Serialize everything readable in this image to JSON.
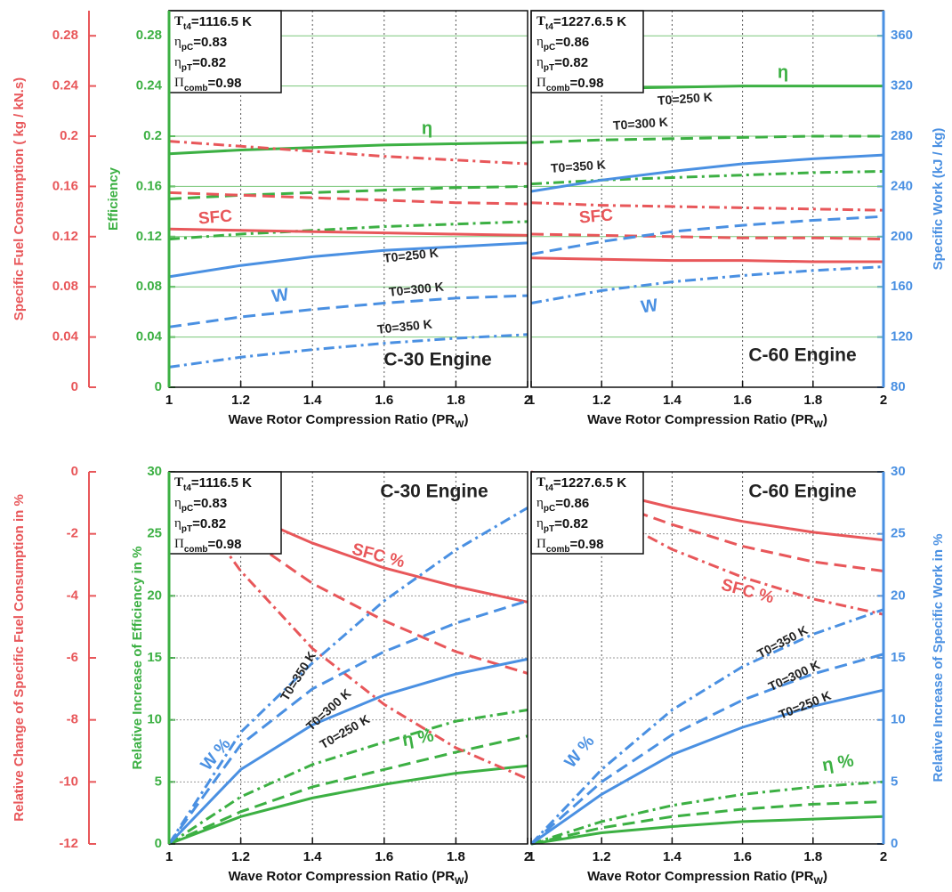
{
  "chart_data": [
    {
      "type": "line",
      "grid": true,
      "x": [
        1,
        1.2,
        1.4,
        1.6,
        1.8,
        2
      ],
      "xlim": [
        1,
        2
      ],
      "xticks": [
        1,
        1.2,
        1.4,
        1.6,
        1.8,
        2
      ],
      "ylabel": "Efficiency",
      "ylim": [
        0,
        0.3
      ],
      "yticks": [
        0,
        0.04,
        0.08,
        0.12,
        0.16,
        0.2,
        0.24,
        0.28
      ],
      "y2label": "Specific Fuel Consumption ( kg / kN.s)",
      "y2lim": [
        0,
        0.3
      ],
      "y2ticks": [
        0,
        0.04,
        0.08,
        0.12,
        0.16,
        0.2,
        0.24,
        0.28
      ],
      "y3label": "Specific Work (kJ / kg)",
      "y3lim": [
        80,
        380
      ],
      "y3ticks": [
        80,
        120,
        160,
        200,
        240,
        280,
        320,
        360
      ],
      "colors": {
        "y": "#3cb043",
        "y2": "#e8575a",
        "y3": "#4a90e2"
      },
      "panels": [
        {
          "title": "C-30 Engine",
          "xlabel": "Wave Rotor Compression Ratio (PR",
          "xlabel_sub": "W",
          "xlabel_end": ")",
          "conditions": [
            {
              "symbol": "T",
              "sub": "t4",
              "value": "=1116.5 K"
            },
            {
              "symbol": "η",
              "sub": "pC",
              "value": "=0.83"
            },
            {
              "symbol": "η",
              "sub": "pT",
              "value": "=0.82"
            },
            {
              "symbol": "Π",
              "sub": "comb",
              "value": "=0.98"
            }
          ],
          "labels": [
            "η",
            "SFC",
            "W",
            "T0=250 K",
            "T0=300 K",
            "T0=350 K"
          ],
          "series": [
            {
              "axis": "y",
              "color": "#3cb043",
              "dash": "solid",
              "values": [
                0.186,
                0.189,
                0.191,
                0.193,
                0.194,
                0.195
              ]
            },
            {
              "axis": "y",
              "color": "#3cb043",
              "dash": "dashed",
              "values": [
                0.15,
                0.153,
                0.155,
                0.157,
                0.159,
                0.16
              ]
            },
            {
              "axis": "y",
              "color": "#3cb043",
              "dash": "dashdot",
              "values": [
                0.118,
                0.122,
                0.125,
                0.128,
                0.13,
                0.132
              ]
            },
            {
              "axis": "y2",
              "color": "#e8575a",
              "dash": "solid",
              "values": [
                0.126,
                0.125,
                0.124,
                0.123,
                0.122,
                0.121
              ]
            },
            {
              "axis": "y2",
              "color": "#e8575a",
              "dash": "dashed",
              "values": [
                0.155,
                0.153,
                0.151,
                0.149,
                0.147,
                0.146
              ]
            },
            {
              "axis": "y2",
              "color": "#e8575a",
              "dash": "dashdot",
              "values": [
                0.196,
                0.192,
                0.188,
                0.184,
                0.181,
                0.178
              ]
            },
            {
              "axis": "y3",
              "color": "#4a90e2",
              "dash": "solid",
              "values": [
                168,
                177,
                184,
                189,
                192,
                195
              ]
            },
            {
              "axis": "y3",
              "color": "#4a90e2",
              "dash": "dashed",
              "values": [
                128,
                136,
                142,
                147,
                151,
                153
              ]
            },
            {
              "axis": "y3",
              "color": "#4a90e2",
              "dash": "dashdot",
              "values": [
                96,
                104,
                110,
                115,
                119,
                122
              ]
            }
          ]
        },
        {
          "title": "C-60 Engine",
          "xlabel": "Wave Rotor Compression Ratio (PR",
          "xlabel_sub": "W",
          "xlabel_end": ")",
          "conditions": [
            {
              "symbol": "T",
              "sub": "t4",
              "value": "=1227.6.5 K"
            },
            {
              "symbol": "η",
              "sub": "pC",
              "value": "=0.86"
            },
            {
              "symbol": "η",
              "sub": "pT",
              "value": "=0.82"
            },
            {
              "symbol": "Π",
              "sub": "comb",
              "value": "=0.98"
            }
          ],
          "labels": [
            "η",
            "SFC",
            "W",
            "T0=250 K",
            "T0=300 K",
            "T0=350 K"
          ],
          "series": [
            {
              "axis": "y",
              "color": "#3cb043",
              "dash": "solid",
              "values": [
                0.237,
                0.238,
                0.239,
                0.24,
                0.24,
                0.24
              ]
            },
            {
              "axis": "y",
              "color": "#3cb043",
              "dash": "dashed",
              "values": [
                0.195,
                0.197,
                0.198,
                0.199,
                0.2,
                0.2
              ]
            },
            {
              "axis": "y",
              "color": "#3cb043",
              "dash": "dashdot",
              "values": [
                0.162,
                0.165,
                0.167,
                0.169,
                0.171,
                0.172
              ]
            },
            {
              "axis": "y2",
              "color": "#e8575a",
              "dash": "solid",
              "values": [
                0.103,
                0.102,
                0.101,
                0.101,
                0.1,
                0.1
              ]
            },
            {
              "axis": "y2",
              "color": "#e8575a",
              "dash": "dashed",
              "values": [
                0.122,
                0.121,
                0.12,
                0.119,
                0.119,
                0.118
              ]
            },
            {
              "axis": "y2",
              "color": "#e8575a",
              "dash": "dashdot",
              "values": [
                0.147,
                0.145,
                0.144,
                0.143,
                0.142,
                0.141
              ]
            },
            {
              "axis": "y3",
              "color": "#4a90e2",
              "dash": "solid",
              "values": [
                236,
                245,
                252,
                258,
                262,
                265
              ]
            },
            {
              "axis": "y3",
              "color": "#4a90e2",
              "dash": "dashed",
              "values": [
                186,
                196,
                204,
                209,
                213,
                216
              ]
            },
            {
              "axis": "y3",
              "color": "#4a90e2",
              "dash": "dashdot",
              "values": [
                147,
                157,
                164,
                169,
                173,
                176
              ]
            }
          ]
        }
      ]
    },
    {
      "type": "line",
      "grid": true,
      "x": [
        1,
        1.2,
        1.4,
        1.6,
        1.8,
        2
      ],
      "xlim": [
        1,
        2
      ],
      "xticks": [
        1,
        1.2,
        1.4,
        1.6,
        1.8,
        2
      ],
      "ylabel": "Relative Increase of Efficiency in %",
      "ylim": [
        0,
        30
      ],
      "yticks": [
        0,
        5,
        10,
        15,
        20,
        25,
        30
      ],
      "y2label": "Relative Change of Specific Fuel Consumption in %",
      "y2lim": [
        -12,
        0
      ],
      "y2ticks": [
        -12,
        -10,
        -8,
        -6,
        -4,
        -2,
        0
      ],
      "y3label": "Relative Increase of Specific Work in %",
      "y3lim": [
        0,
        30
      ],
      "y3ticks": [
        0,
        5,
        10,
        15,
        20,
        25,
        30
      ],
      "colors": {
        "y": "#3cb043",
        "y2": "#e8575a",
        "y3": "#4a90e2"
      },
      "panels": [
        {
          "title": "C-30 Engine",
          "xlabel": "Wave Rotor Compression Ratio (PR",
          "xlabel_sub": "W",
          "xlabel_end": ")",
          "conditions": [
            {
              "symbol": "T",
              "sub": "t4",
              "value": "=1116.5 K"
            },
            {
              "symbol": "η",
              "sub": "pC",
              "value": "=0.83"
            },
            {
              "symbol": "η",
              "sub": "pT",
              "value": "=0.82"
            },
            {
              "symbol": "Π",
              "sub": "comb",
              "value": "=0.98"
            }
          ],
          "labels": [
            "η %",
            "SFC %",
            "W %",
            "T0=250 K",
            "T0=300 K",
            "T0=350 K"
          ],
          "series": [
            {
              "axis": "y",
              "color": "#3cb043",
              "dash": "solid",
              "values": [
                0,
                2.2,
                3.7,
                4.8,
                5.7,
                6.3
              ]
            },
            {
              "axis": "y",
              "color": "#3cb043",
              "dash": "dashed",
              "values": [
                0,
                2.6,
                4.6,
                6.0,
                7.4,
                8.7
              ]
            },
            {
              "axis": "y",
              "color": "#3cb043",
              "dash": "dashdot",
              "values": [
                0,
                3.8,
                6.4,
                8.2,
                9.9,
                10.8
              ]
            },
            {
              "axis": "y2",
              "color": "#e8575a",
              "dash": "solid",
              "values": [
                0,
                -1.3,
                -2.3,
                -3.1,
                -3.7,
                -4.2
              ]
            },
            {
              "axis": "y2",
              "color": "#e8575a",
              "dash": "dashed",
              "values": [
                0,
                -2.0,
                -3.6,
                -4.8,
                -5.8,
                -6.5
              ]
            },
            {
              "axis": "y2",
              "color": "#e8575a",
              "dash": "dashdot",
              "values": [
                0,
                -3.2,
                -5.7,
                -7.5,
                -8.9,
                -9.9
              ]
            },
            {
              "axis": "y3",
              "color": "#4a90e2",
              "dash": "solid",
              "values": [
                0,
                6,
                9.6,
                12,
                13.7,
                14.9
              ]
            },
            {
              "axis": "y3",
              "color": "#4a90e2",
              "dash": "dashed",
              "values": [
                0,
                8,
                12.5,
                15.5,
                17.8,
                19.6
              ]
            },
            {
              "axis": "y3",
              "color": "#4a90e2",
              "dash": "dashdot",
              "values": [
                0,
                9,
                14.6,
                19.6,
                23.7,
                27.1
              ]
            }
          ]
        },
        {
          "title": "C-60 Engine",
          "xlabel": "Wave Rotor Compression Ratio (PR",
          "xlabel_sub": "W",
          "xlabel_end": ")",
          "conditions": [
            {
              "symbol": "T",
              "sub": "t4",
              "value": "=1227.6.5 K"
            },
            {
              "symbol": "η",
              "sub": "pC",
              "value": "=0.86"
            },
            {
              "symbol": "η",
              "sub": "pT",
              "value": "=0.82"
            },
            {
              "symbol": "Π",
              "sub": "comb",
              "value": "=0.98"
            }
          ],
          "labels": [
            "η %",
            "SFC %",
            "W %",
            "T0=250 K",
            "T0=300 K",
            "T0=350 K"
          ],
          "series": [
            {
              "axis": "y",
              "color": "#3cb043",
              "dash": "solid",
              "values": [
                0,
                0.9,
                1.4,
                1.8,
                2.0,
                2.2
              ]
            },
            {
              "axis": "y",
              "color": "#3cb043",
              "dash": "dashed",
              "values": [
                0,
                1.3,
                2.2,
                2.8,
                3.2,
                3.4
              ]
            },
            {
              "axis": "y",
              "color": "#3cb043",
              "dash": "dashdot",
              "values": [
                0,
                1.8,
                3.1,
                4.0,
                4.6,
                5.0
              ]
            },
            {
              "axis": "y2",
              "color": "#e8575a",
              "dash": "solid",
              "values": [
                0,
                -0.6,
                -1.15,
                -1.6,
                -1.95,
                -2.2
              ]
            },
            {
              "axis": "y2",
              "color": "#e8575a",
              "dash": "dashed",
              "values": [
                0,
                -0.9,
                -1.7,
                -2.4,
                -2.9,
                -3.2
              ]
            },
            {
              "axis": "y2",
              "color": "#e8575a",
              "dash": "dashdot",
              "values": [
                0,
                -1.3,
                -2.5,
                -3.4,
                -4.1,
                -4.6
              ]
            },
            {
              "axis": "y3",
              "color": "#4a90e2",
              "dash": "solid",
              "values": [
                0,
                4,
                7.2,
                9.4,
                11.1,
                12.4
              ]
            },
            {
              "axis": "y3",
              "color": "#4a90e2",
              "dash": "dashed",
              "values": [
                0,
                5,
                8.8,
                11.6,
                13.7,
                15.3
              ]
            },
            {
              "axis": "y3",
              "color": "#4a90e2",
              "dash": "dashdot",
              "values": [
                0,
                6,
                10.8,
                14.3,
                16.9,
                18.9
              ]
            }
          ]
        }
      ]
    }
  ]
}
